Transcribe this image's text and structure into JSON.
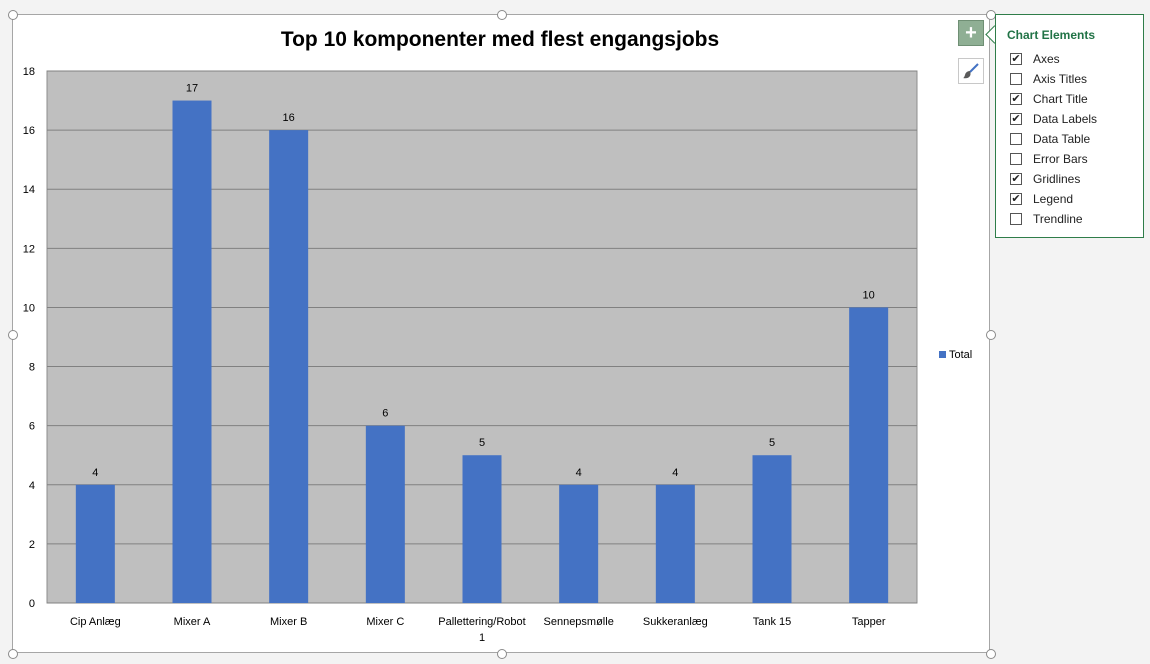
{
  "chart_data": {
    "type": "bar",
    "title": "Top 10 komponenter med flest engangsjobs",
    "categories": [
      "Cip Anlæg",
      "Mixer A",
      "Mixer B",
      "Mixer C",
      "Pallettering/Robot 1",
      "Sennepsmølle",
      "Sukkeranlæg",
      "Tank 15",
      "Tapper"
    ],
    "series": [
      {
        "name": "Total",
        "values": [
          4,
          17,
          16,
          6,
          5,
          4,
          4,
          5,
          10
        ],
        "color": "#4472c4"
      }
    ],
    "ylim": [
      0,
      18
    ],
    "yticks": [
      0,
      2,
      4,
      6,
      8,
      10,
      12,
      14,
      16,
      18
    ],
    "grid": true,
    "legend_position": "right",
    "plot_background": "#bfbfbf"
  },
  "chart_elements_panel": {
    "title": "Chart Elements",
    "items": [
      {
        "label": "Axes",
        "checked": true
      },
      {
        "label": "Axis Titles",
        "checked": false
      },
      {
        "label": "Chart Title",
        "checked": true
      },
      {
        "label": "Data Labels",
        "checked": true
      },
      {
        "label": "Data Table",
        "checked": false
      },
      {
        "label": "Error Bars",
        "checked": false
      },
      {
        "label": "Gridlines",
        "checked": true
      },
      {
        "label": "Legend",
        "checked": true
      },
      {
        "label": "Trendline",
        "checked": false
      }
    ]
  },
  "side_buttons": {
    "add_icon": "plus-icon",
    "style_icon": "paintbrush-icon"
  }
}
